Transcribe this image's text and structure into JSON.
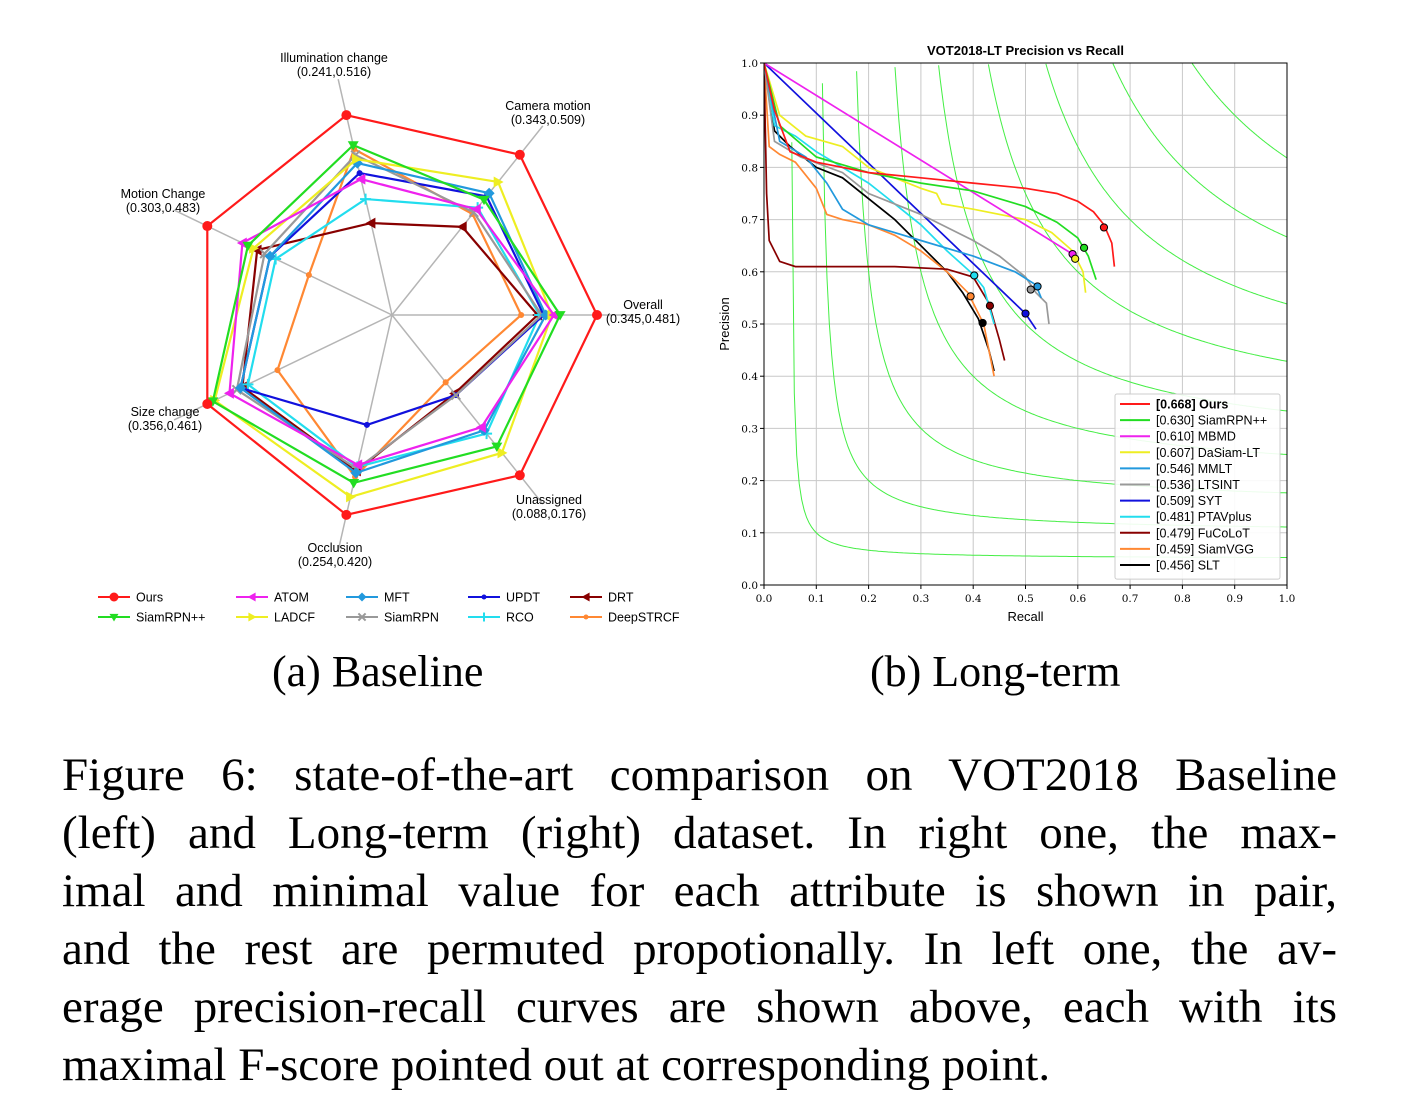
{
  "radar": {
    "axes": [
      {
        "name": "Overall",
        "range": "(0.345,0.481)"
      },
      {
        "name": "Camera motion",
        "range": "(0.343,0.509)"
      },
      {
        "name": "Illumination change",
        "range": "(0.241,0.516)"
      },
      {
        "name": "Motion Change",
        "range": "(0.303,0.483)"
      },
      {
        "name": "Size change",
        "range": "(0.356,0.461)"
      },
      {
        "name": "Occlusion",
        "range": "(0.254,0.420)"
      },
      {
        "name": "Unassigned",
        "range": "(0.088,0.176)"
      }
    ],
    "series": [
      {
        "name": "Ours",
        "color": "#ff1a1a",
        "marker": "circle",
        "values": [
          1.0,
          1.0,
          1.0,
          1.0,
          1.0,
          1.0,
          1.0
        ]
      },
      {
        "name": "SiamRPN++",
        "color": "#22dd22",
        "marker": "tri-down",
        "values": [
          0.82,
          0.72,
          0.85,
          0.78,
          0.97,
          0.84,
          0.82
        ]
      },
      {
        "name": "ATOM",
        "color": "#ee22ee",
        "marker": "tri-left",
        "values": [
          0.79,
          0.66,
          0.68,
          0.81,
          0.88,
          0.75,
          0.7
        ]
      },
      {
        "name": "LADCF",
        "color": "#eeee22",
        "marker": "tri-right",
        "values": [
          0.78,
          0.83,
          0.78,
          0.75,
          0.96,
          0.91,
          0.86
        ]
      },
      {
        "name": "MFT",
        "color": "#2299dd",
        "marker": "diamond",
        "values": [
          0.75,
          0.76,
          0.76,
          0.66,
          0.82,
          0.79,
          0.72
        ]
      },
      {
        "name": "SiamRPN",
        "color": "#999999",
        "marker": "x",
        "values": [
          0.73,
          0.64,
          0.8,
          0.69,
          0.84,
          0.77,
          0.5
        ]
      },
      {
        "name": "UPDT",
        "color": "#1111dd",
        "marker": "dot",
        "values": [
          0.74,
          0.74,
          0.71,
          0.66,
          0.82,
          0.55,
          0.5
        ]
      },
      {
        "name": "RCO",
        "color": "#22ddee",
        "marker": "plus",
        "values": [
          0.72,
          0.67,
          0.58,
          0.63,
          0.78,
          0.76,
          0.74
        ]
      },
      {
        "name": "DRT",
        "color": "#880000",
        "marker": "tri-left",
        "values": [
          0.71,
          0.55,
          0.46,
          0.73,
          0.81,
          0.78,
          0.49
        ]
      },
      {
        "name": "DeepSTRCF",
        "color": "#ff8833",
        "marker": "dot",
        "values": [
          0.63,
          0.63,
          0.83,
          0.45,
          0.62,
          0.81,
          0.42
        ]
      }
    ]
  },
  "chart_data": {
    "type": "line",
    "title": "VOT2018-LT Precision vs Recall",
    "xlabel": "Recall",
    "ylabel": "Precision",
    "xlim": [
      0,
      1
    ],
    "ylim": [
      0,
      1
    ],
    "xticks": [
      "0.0",
      "0.1",
      "0.2",
      "0.3",
      "0.4",
      "0.5",
      "0.6",
      "0.7",
      "0.8",
      "0.9",
      "1.0"
    ],
    "yticks": [
      "0.0",
      "0.1",
      "0.2",
      "0.3",
      "0.4",
      "0.5",
      "0.6",
      "0.7",
      "0.8",
      "0.9",
      "1.0"
    ],
    "grid": true,
    "legend_position": "lower-right",
    "iso_fscore": [
      0.1,
      0.2,
      0.3,
      0.4,
      0.5,
      0.6,
      0.7,
      0.8,
      0.9
    ],
    "series": [
      {
        "name": "Ours",
        "score": "[0.668]",
        "color": "#ff1a1a",
        "bold": true,
        "fmax": [
          0.65,
          0.685
        ],
        "points": [
          [
            0,
            1
          ],
          [
            0.02,
            0.91
          ],
          [
            0.05,
            0.83
          ],
          [
            0.1,
            0.81
          ],
          [
            0.2,
            0.79
          ],
          [
            0.3,
            0.78
          ],
          [
            0.4,
            0.77
          ],
          [
            0.5,
            0.76
          ],
          [
            0.56,
            0.75
          ],
          [
            0.6,
            0.735
          ],
          [
            0.63,
            0.715
          ],
          [
            0.65,
            0.69
          ],
          [
            0.665,
            0.655
          ],
          [
            0.67,
            0.61
          ]
        ]
      },
      {
        "name": "SiamRPN++",
        "score": "[0.630]",
        "color": "#22dd22",
        "bold": false,
        "fmax": [
          0.612,
          0.646
        ],
        "points": [
          [
            0,
            1
          ],
          [
            0.03,
            0.88
          ],
          [
            0.1,
            0.82
          ],
          [
            0.2,
            0.79
          ],
          [
            0.3,
            0.77
          ],
          [
            0.4,
            0.755
          ],
          [
            0.5,
            0.725
          ],
          [
            0.56,
            0.695
          ],
          [
            0.6,
            0.665
          ],
          [
            0.62,
            0.63
          ],
          [
            0.635,
            0.585
          ]
        ]
      },
      {
        "name": "MBMD",
        "score": "[0.610]",
        "color": "#ee22ee",
        "bold": false,
        "fmax": [
          0.59,
          0.634
        ],
        "points": [
          [
            0,
            1
          ],
          [
            0.59,
            0.634
          ],
          [
            0.6,
            0.62
          ]
        ]
      },
      {
        "name": "DaSiam-LT",
        "score": "[0.607]",
        "color": "#eeee22",
        "bold": false,
        "fmax": [
          0.595,
          0.625
        ],
        "points": [
          [
            0,
            1
          ],
          [
            0.03,
            0.9
          ],
          [
            0.08,
            0.86
          ],
          [
            0.15,
            0.84
          ],
          [
            0.2,
            0.8
          ],
          [
            0.3,
            0.76
          ],
          [
            0.33,
            0.75
          ],
          [
            0.34,
            0.73
          ],
          [
            0.4,
            0.72
          ],
          [
            0.5,
            0.7
          ],
          [
            0.55,
            0.675
          ],
          [
            0.59,
            0.64
          ],
          [
            0.61,
            0.6
          ],
          [
            0.615,
            0.56
          ]
        ]
      },
      {
        "name": "MMLT",
        "score": "[0.546]",
        "color": "#2299dd",
        "bold": false,
        "fmax": [
          0.523,
          0.572
        ],
        "points": [
          [
            0,
            1
          ],
          [
            0.03,
            0.85
          ],
          [
            0.08,
            0.82
          ],
          [
            0.12,
            0.77
          ],
          [
            0.15,
            0.72
          ],
          [
            0.2,
            0.69
          ],
          [
            0.3,
            0.66
          ],
          [
            0.4,
            0.63
          ],
          [
            0.48,
            0.6
          ],
          [
            0.52,
            0.575
          ],
          [
            0.53,
            0.55
          ]
        ]
      },
      {
        "name": "LTSINT",
        "score": "[0.536]",
        "color": "#999999",
        "bold": false,
        "fmax": [
          0.51,
          0.566
        ],
        "points": [
          [
            0,
            1
          ],
          [
            0.02,
            0.85
          ],
          [
            0.07,
            0.82
          ],
          [
            0.15,
            0.79
          ],
          [
            0.2,
            0.75
          ],
          [
            0.3,
            0.71
          ],
          [
            0.4,
            0.66
          ],
          [
            0.45,
            0.63
          ],
          [
            0.5,
            0.59
          ],
          [
            0.52,
            0.56
          ],
          [
            0.54,
            0.54
          ],
          [
            0.545,
            0.5
          ]
        ]
      },
      {
        "name": "SYT",
        "score": "[0.509]",
        "color": "#1111dd",
        "bold": false,
        "fmax": [
          0.5,
          0.52
        ],
        "points": [
          [
            0,
            1
          ],
          [
            0.5,
            0.52
          ],
          [
            0.52,
            0.49
          ]
        ]
      },
      {
        "name": "PTAVplus",
        "score": "[0.481]",
        "color": "#22ddee",
        "bold": false,
        "fmax": [
          0.402,
          0.593
        ],
        "points": [
          [
            0,
            1
          ],
          [
            0.02,
            0.88
          ],
          [
            0.06,
            0.86
          ],
          [
            0.1,
            0.83
          ],
          [
            0.15,
            0.8
          ],
          [
            0.2,
            0.77
          ],
          [
            0.25,
            0.73
          ],
          [
            0.3,
            0.69
          ],
          [
            0.35,
            0.64
          ],
          [
            0.4,
            0.595
          ],
          [
            0.42,
            0.57
          ],
          [
            0.44,
            0.5
          ]
        ]
      },
      {
        "name": "FuCoLoT",
        "score": "[0.479]",
        "color": "#880000",
        "bold": false,
        "fmax": [
          0.432,
          0.535
        ],
        "points": [
          [
            0,
            1
          ],
          [
            0.005,
            0.75
          ],
          [
            0.01,
            0.66
          ],
          [
            0.03,
            0.62
          ],
          [
            0.06,
            0.61
          ],
          [
            0.15,
            0.61
          ],
          [
            0.25,
            0.61
          ],
          [
            0.35,
            0.605
          ],
          [
            0.4,
            0.59
          ],
          [
            0.43,
            0.54
          ],
          [
            0.45,
            0.47
          ],
          [
            0.46,
            0.43
          ]
        ]
      },
      {
        "name": "SiamVGG",
        "score": "[0.459]",
        "color": "#ff8833",
        "bold": false,
        "fmax": [
          0.395,
          0.553
        ],
        "points": [
          [
            0,
            1
          ],
          [
            0.01,
            0.84
          ],
          [
            0.03,
            0.825
          ],
          [
            0.06,
            0.81
          ],
          [
            0.1,
            0.76
          ],
          [
            0.12,
            0.71
          ],
          [
            0.15,
            0.7
          ],
          [
            0.2,
            0.69
          ],
          [
            0.25,
            0.67
          ],
          [
            0.3,
            0.64
          ],
          [
            0.35,
            0.6
          ],
          [
            0.39,
            0.56
          ],
          [
            0.42,
            0.5
          ],
          [
            0.44,
            0.4
          ]
        ]
      },
      {
        "name": "SLT",
        "score": "[0.456]",
        "color": "#000000",
        "bold": false,
        "fmax": [
          0.418,
          0.502
        ],
        "points": [
          [
            0,
            1
          ],
          [
            0.02,
            0.87
          ],
          [
            0.05,
            0.84
          ],
          [
            0.1,
            0.8
          ],
          [
            0.15,
            0.78
          ],
          [
            0.2,
            0.74
          ],
          [
            0.25,
            0.7
          ],
          [
            0.3,
            0.65
          ],
          [
            0.35,
            0.6
          ],
          [
            0.38,
            0.56
          ],
          [
            0.41,
            0.51
          ],
          [
            0.43,
            0.45
          ],
          [
            0.44,
            0.41
          ]
        ]
      }
    ]
  },
  "subcaptions": {
    "a": "(a) Baseline",
    "b": "(b) Long-term"
  },
  "caption_lines": [
    "Figure 6: state-of-the-art comparison on VOT2018 Baseline",
    "(left) and Long-term (right) dataset. In right one, the max-",
    "imal and minimal value for each attribute is shown in pair,",
    "and the rest are permuted propotionally. In left one, the av-",
    "erage precision-recall curves are shown above, each with its",
    "maximal F-score pointed out at corresponding point."
  ]
}
